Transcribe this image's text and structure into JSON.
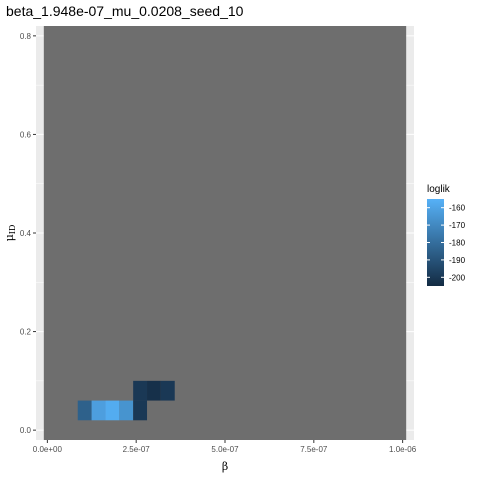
{
  "chart_data": {
    "type": "heatmap",
    "title": "beta_1.948e-07_mu_0.0208_seed_10",
    "xlabel": "β",
    "ylabel_main": "μ",
    "ylabel_sub": "ID",
    "xlim": [
      -3.2e-08,
      1.032e-06
    ],
    "ylim": [
      -0.02,
      0.82
    ],
    "x_ticks": [
      0,
      2.5e-07,
      5e-07,
      7.5e-07,
      1e-06
    ],
    "x_tick_labels": [
      "0.0e+00",
      "2.5e-07",
      "5.0e-07",
      "7.5e-07",
      "1.0e-06"
    ],
    "y_ticks": [
      0,
      0.2,
      0.4,
      0.6,
      0.8
    ],
    "y_tick_labels": [
      "0.0",
      "0.2",
      "0.4",
      "0.6",
      "0.8"
    ],
    "grid": true,
    "na_color": "#6e6e6e",
    "panel_color": "#ebebeb",
    "fill_low_color": "#132b43",
    "fill_high_color": "#56b1f7",
    "cell_width": 3.9e-08,
    "cell_height": 0.04,
    "cells": [
      {
        "x": 1.05e-07,
        "y": 0.04,
        "loglik": -185
      },
      {
        "x": 1.44e-07,
        "y": 0.04,
        "loglik": -162
      },
      {
        "x": 1.83e-07,
        "y": 0.04,
        "loglik": -157
      },
      {
        "x": 2.22e-07,
        "y": 0.04,
        "loglik": -166
      },
      {
        "x": 2.61e-07,
        "y": 0.04,
        "loglik": -200
      },
      {
        "x": 2.61e-07,
        "y": 0.08,
        "loglik": -200
      },
      {
        "x": 3e-07,
        "y": 0.08,
        "loglik": -203
      },
      {
        "x": 3.39e-07,
        "y": 0.08,
        "loglik": -200
      }
    ],
    "legend": {
      "title": "loglik",
      "placement": "right",
      "range": [
        -205,
        -155
      ],
      "breaks": [
        -160,
        -170,
        -180,
        -190,
        -200
      ],
      "break_labels": [
        "-160",
        "-170",
        "-180",
        "-190",
        "-200"
      ]
    }
  }
}
